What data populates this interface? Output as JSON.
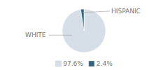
{
  "chart_data": {
    "type": "pie",
    "categories": [
      "WHITE",
      "HISPANIC"
    ],
    "values": [
      97.6,
      2.4
    ],
    "value_labels": [
      "97.6%",
      "2.4%"
    ],
    "colors": [
      "#d6dfe8",
      "#2e6480"
    ],
    "legend": "bottom"
  }
}
